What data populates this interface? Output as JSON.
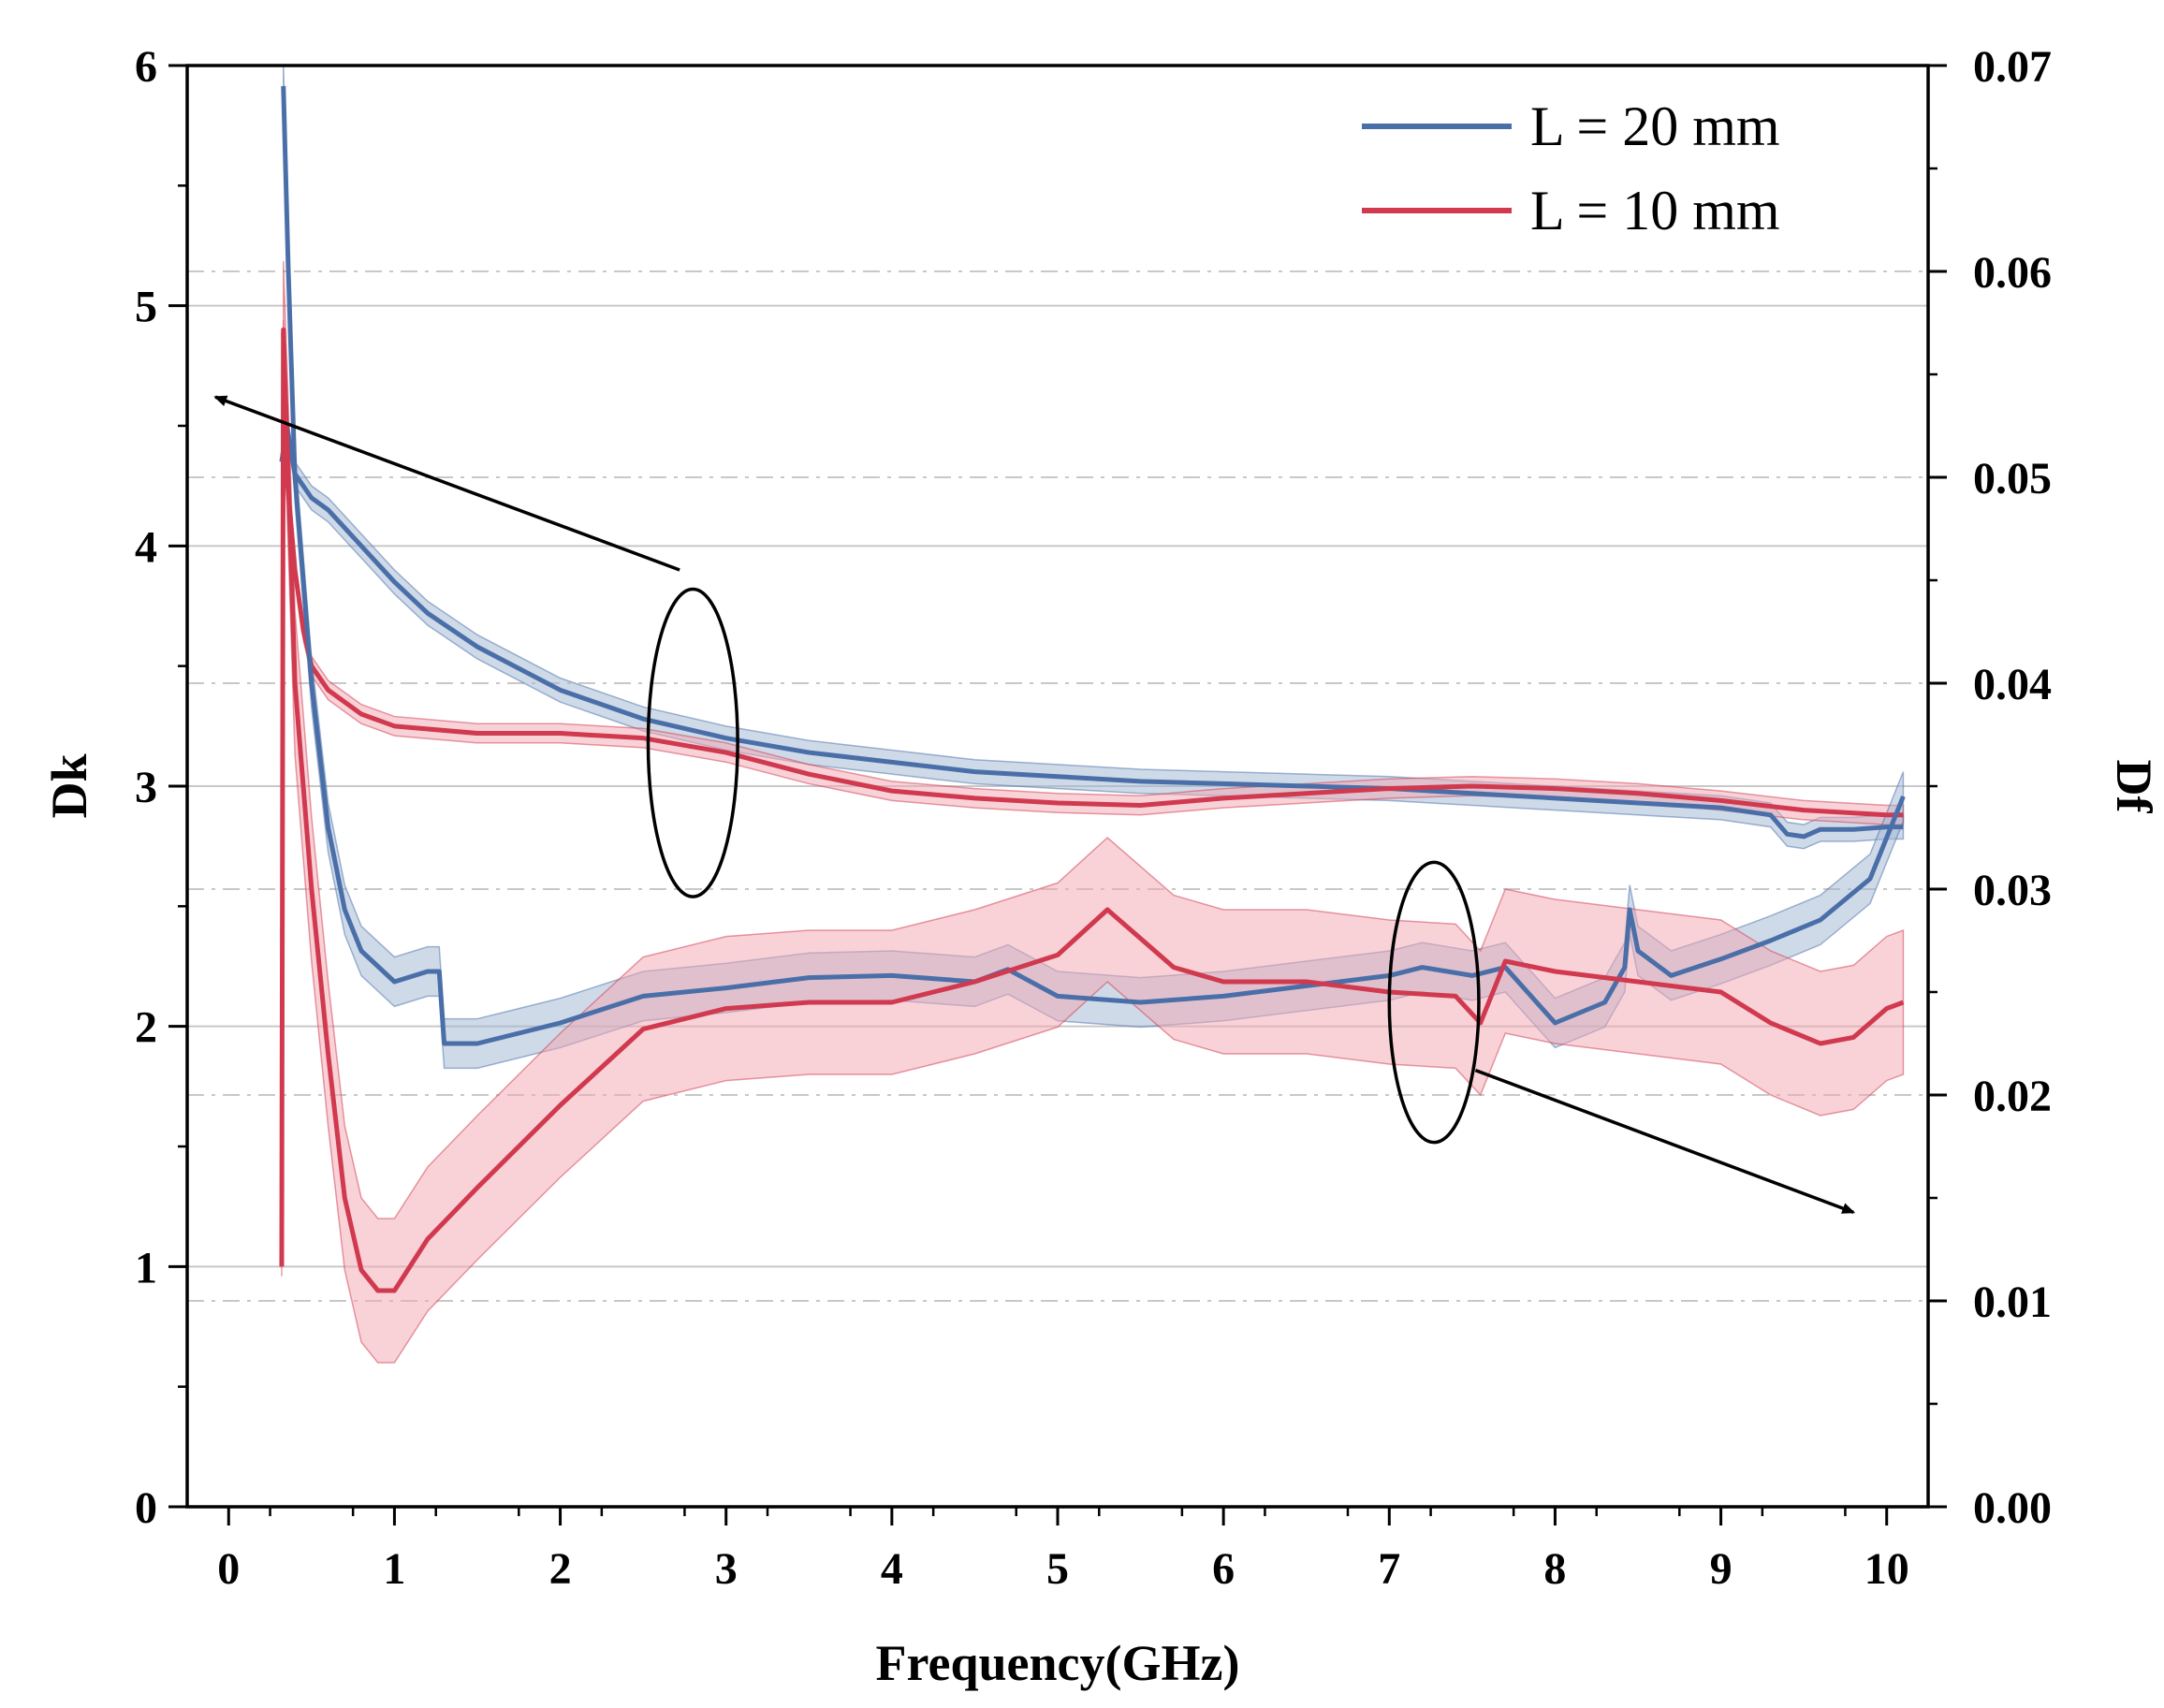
{
  "chart_data": {
    "type": "line",
    "title": "",
    "xlabel": "Frequency(GHz)",
    "ylabel_left": "Dk",
    "ylabel_right": "Df",
    "xlim": [
      -0.25,
      10.25
    ],
    "ylim_left": [
      0,
      6
    ],
    "ylim_right": [
      0.0,
      0.07
    ],
    "x_ticks": [
      0,
      1,
      2,
      3,
      4,
      5,
      6,
      7,
      8,
      9,
      10
    ],
    "x_tick_labels": [
      "0",
      "1",
      "2",
      "3",
      "4",
      "5",
      "6",
      "7",
      "8",
      "9",
      "10"
    ],
    "y_left_ticks": [
      0,
      1,
      2,
      3,
      4,
      5,
      6
    ],
    "y_left_tick_labels": [
      "0",
      "1",
      "2",
      "3",
      "4",
      "5",
      "6"
    ],
    "y_right_ticks": [
      0.0,
      0.01,
      0.02,
      0.03,
      0.04,
      0.05,
      0.06,
      0.07
    ],
    "y_right_tick_labels": [
      "0.00",
      "0.01",
      "0.02",
      "0.03",
      "0.04",
      "0.05",
      "0.06",
      "0.07"
    ],
    "grid": true,
    "legend_position": "top-right",
    "colors": {
      "blue": "#4a6fa8",
      "red": "#d0394e",
      "blue_band": "#9fb6d4",
      "red_band": "#f3a6b1"
    },
    "series": [
      {
        "name": "L = 20 mm",
        "axis": "left",
        "kind": "Dk",
        "color": "#4a6fa8",
        "band": 0.05,
        "x": [
          0.32,
          0.35,
          0.4,
          0.5,
          0.6,
          0.8,
          1.0,
          1.2,
          1.5,
          2.0,
          2.5,
          3.0,
          3.5,
          4.0,
          4.5,
          5.0,
          5.5,
          6.0,
          6.5,
          7.0,
          7.5,
          8.0,
          8.5,
          9.0,
          9.3,
          9.4,
          9.5,
          9.6,
          9.8,
          10.0,
          10.1
        ],
        "y": [
          4.35,
          4.5,
          4.3,
          4.2,
          4.15,
          4.0,
          3.85,
          3.72,
          3.58,
          3.4,
          3.28,
          3.2,
          3.14,
          3.1,
          3.06,
          3.04,
          3.02,
          3.01,
          3.0,
          2.99,
          2.97,
          2.95,
          2.93,
          2.91,
          2.88,
          2.8,
          2.79,
          2.82,
          2.82,
          2.83,
          2.83
        ]
      },
      {
        "name": "L = 10 mm",
        "axis": "left",
        "kind": "Dk",
        "color": "#d0394e",
        "band": 0.04,
        "x": [
          0.32,
          0.33,
          0.35,
          0.4,
          0.45,
          0.5,
          0.6,
          0.8,
          1.0,
          1.5,
          2.0,
          2.5,
          3.0,
          3.5,
          4.0,
          4.5,
          5.0,
          5.5,
          6.0,
          6.5,
          7.0,
          7.5,
          8.0,
          8.5,
          9.0,
          9.5,
          10.0,
          10.1
        ],
        "y": [
          1.0,
          4.9,
          4.3,
          3.9,
          3.65,
          3.5,
          3.4,
          3.3,
          3.25,
          3.22,
          3.22,
          3.2,
          3.14,
          3.05,
          2.98,
          2.95,
          2.93,
          2.92,
          2.95,
          2.97,
          2.99,
          3.0,
          2.99,
          2.97,
          2.94,
          2.9,
          2.88,
          2.88
        ]
      },
      {
        "name": "L = 20 mm",
        "axis": "right",
        "kind": "Df",
        "color": "#4a6fa8",
        "band": 0.0012,
        "x": [
          0.33,
          0.36,
          0.4,
          0.5,
          0.6,
          0.7,
          0.8,
          1.0,
          1.2,
          1.27,
          1.3,
          1.5,
          2.0,
          2.5,
          3.0,
          3.5,
          4.0,
          4.5,
          4.7,
          5.0,
          5.5,
          6.0,
          6.5,
          7.0,
          7.2,
          7.5,
          7.7,
          8.0,
          8.3,
          8.42,
          8.45,
          8.5,
          8.7,
          9.0,
          9.3,
          9.6,
          9.9,
          10.1
        ],
        "y": [
          0.069,
          0.06,
          0.05,
          0.04,
          0.033,
          0.029,
          0.027,
          0.0255,
          0.026,
          0.026,
          0.0225,
          0.0225,
          0.0235,
          0.0248,
          0.0252,
          0.0257,
          0.0258,
          0.0255,
          0.0261,
          0.0248,
          0.0245,
          0.0248,
          0.0253,
          0.0258,
          0.0262,
          0.0258,
          0.0262,
          0.0235,
          0.0245,
          0.0262,
          0.029,
          0.027,
          0.0258,
          0.0266,
          0.0275,
          0.0285,
          0.0305,
          0.0345
        ]
      },
      {
        "name": "L = 10 mm",
        "axis": "right",
        "kind": "Df",
        "color": "#d0394e",
        "band": 0.0035,
        "x": [
          0.33,
          0.36,
          0.4,
          0.5,
          0.6,
          0.7,
          0.8,
          0.9,
          1.0,
          1.2,
          1.5,
          2.0,
          2.5,
          3.0,
          3.5,
          4.0,
          4.5,
          5.0,
          5.3,
          5.7,
          6.0,
          6.5,
          7.0,
          7.4,
          7.55,
          7.7,
          8.0,
          8.5,
          9.0,
          9.3,
          9.6,
          9.8,
          10.0,
          10.1
        ],
        "y": [
          0.057,
          0.05,
          0.04,
          0.03,
          0.022,
          0.015,
          0.0115,
          0.0105,
          0.0105,
          0.013,
          0.0155,
          0.0195,
          0.0232,
          0.0242,
          0.0245,
          0.0245,
          0.0255,
          0.0268,
          0.029,
          0.0262,
          0.0255,
          0.0255,
          0.025,
          0.0248,
          0.0235,
          0.0265,
          0.026,
          0.0255,
          0.025,
          0.0235,
          0.0225,
          0.0228,
          0.0242,
          0.0245
        ]
      }
    ],
    "legend": [
      {
        "label": "L = 20 mm",
        "color": "#4a6fa8"
      },
      {
        "label": "L = 10 mm",
        "color": "#d0394e"
      }
    ],
    "annotations": [
      {
        "type": "ellipse",
        "cx": 2.8,
        "cy": 3.18,
        "rx": 0.27,
        "ry": 0.64,
        "axis": "left",
        "note": "Dk curves grouped"
      },
      {
        "type": "arrow",
        "from": [
          2.72,
          3.9
        ],
        "to": [
          -0.08,
          4.62
        ],
        "axis": "left",
        "note": "points to Dk axis"
      },
      {
        "type": "ellipse",
        "cx": 7.27,
        "cy": 0.0245,
        "rx": 0.27,
        "ry": 0.0068,
        "axis": "right",
        "note": "Df curves grouped"
      },
      {
        "type": "arrow",
        "from": [
          7.52,
          0.0212
        ],
        "to": [
          9.8,
          0.0143
        ],
        "axis": "right",
        "note": "points to Df axis"
      }
    ]
  }
}
